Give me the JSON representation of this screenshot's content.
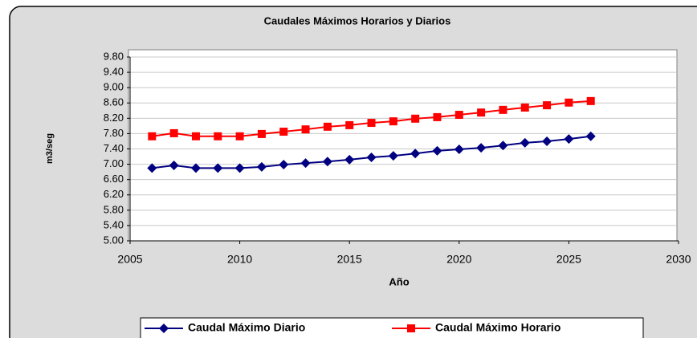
{
  "chart_data": {
    "type": "line",
    "title": "Caudales Máximos Horarios y Diarios",
    "x_label": "Año",
    "y_label": "m3/seg",
    "x": [
      2006,
      2007,
      2008,
      2009,
      2010,
      2011,
      2012,
      2013,
      2014,
      2015,
      2016,
      2017,
      2018,
      2019,
      2020,
      2021,
      2022,
      2023,
      2024,
      2025,
      2026
    ],
    "series": [
      {
        "name": "Caudal Máximo Diario",
        "color": "#000080",
        "marker": "diamond",
        "values": [
          6.9,
          6.97,
          6.9,
          6.9,
          6.9,
          6.93,
          6.99,
          7.03,
          7.07,
          7.12,
          7.18,
          7.22,
          7.28,
          7.35,
          7.39,
          7.43,
          7.49,
          7.56,
          7.6,
          7.66,
          7.73
        ]
      },
      {
        "name": "Caudal Máximo Horario",
        "color": "#ff0000",
        "marker": "square",
        "values": [
          7.73,
          7.81,
          7.73,
          7.73,
          7.73,
          7.79,
          7.85,
          7.91,
          7.98,
          8.02,
          8.08,
          8.12,
          8.19,
          8.23,
          8.29,
          8.35,
          8.42,
          8.48,
          8.54,
          8.61,
          8.65
        ]
      }
    ],
    "xlim": [
      2005,
      2030
    ],
    "xticks": [
      2005,
      2010,
      2015,
      2020,
      2025,
      2030
    ],
    "ylim": [
      5,
      9.8
    ],
    "yticks": [
      {
        "value": 5,
        "label": "5.00"
      },
      {
        "value": 5.4,
        "label": "5.40"
      },
      {
        "value": 5.8,
        "label": "5.80"
      },
      {
        "value": 6.2,
        "label": "6.20"
      },
      {
        "value": 6.6,
        "label": "6.60"
      },
      {
        "value": 7,
        "label": "7.00"
      },
      {
        "value": 7.4,
        "label": "7.40"
      },
      {
        "value": 7.8,
        "label": "7.80"
      },
      {
        "value": 8.2,
        "label": "8.20"
      },
      {
        "value": 8.6,
        "label": "8.60"
      },
      {
        "value": 9,
        "label": "9.00"
      },
      {
        "value": 9.4,
        "label": "9.40"
      },
      {
        "value": 9.8,
        "label": "9.80"
      }
    ],
    "grid": true,
    "legend": "bottom"
  }
}
